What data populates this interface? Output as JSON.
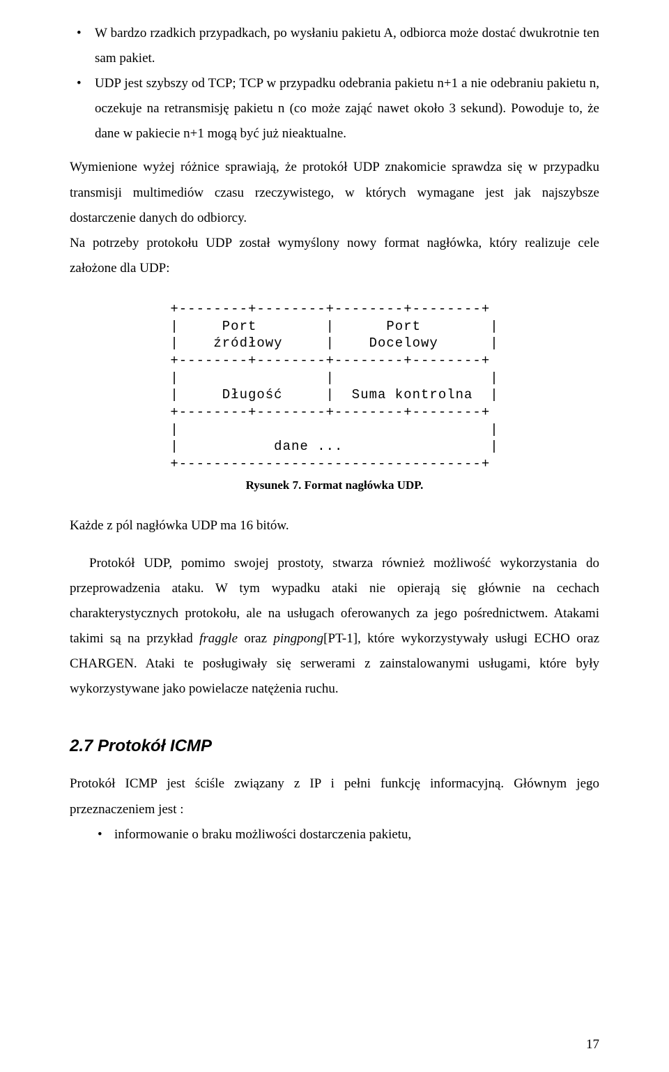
{
  "bullets_top": [
    "W bardzo rzadkich przypadkach, po wysłaniu pakietu A, odbiorca może dostać dwukrotnie ten sam pakiet.",
    "UDP jest szybszy od TCP; TCP w przypadku odebrania pakietu n+1 a nie odebraniu pakietu n, oczekuje na retransmisję pakietu n (co może zająć nawet około 3 sekund). Powoduje to, że dane w pakiecie n+1 mogą być już nieaktualne."
  ],
  "para1": "Wymienione wyżej różnice sprawiają, że protokół UDP znakomicie sprawdza się w przypadku transmisji multimediów czasu rzeczywistego, w których wymagane jest jak najszybsze dostarczenie danych do odbiorcy.",
  "para2": "Na potrzeby protokołu UDP został wymyślony nowy format nagłówka, który realizuje cele założone dla UDP:",
  "figure": {
    "ascii": "+--------+--------+--------+--------+\n|     Port        |      Port        |\n|    źródłowy     |    Docelowy      |\n+--------+--------+--------+--------+\n|                 |                  |\n|     Długość     |  Suma kontrolna  |\n+--------+--------+--------+--------+\n|                                    |\n|           dane ...                 |\n+-----------------------------------+",
    "caption": "Rysunek 7. Format nagłówka UDP."
  },
  "para3": "Każde z pól nagłówka UDP ma 16 bitów.",
  "para4": "Protokół UDP, pomimo swojej prostoty, stwarza również możliwość wykorzystania do przeprowadzenia ataku. W tym wypadku ataki nie opierają się głównie na cechach charakterystycznych protokołu, ale na usługach oferowanych za jego pośrednictwem. Atakami takimi są na przykład fraggle oraz pingpong[PT-1], które wykorzystywały usługi ECHO oraz CHARGEN. Ataki te posługiwały się serwerami z zainstalowanymi usługami, które były wykorzystywane jako powielacze natężenia ruchu.",
  "section_heading": "2.7   Protokół ICMP",
  "para5": "Protokół ICMP jest ściśle związany z IP i pełni funkcję informacyjną. Głównym jego przeznaczeniem jest :",
  "bullets_bottom": [
    "informowanie o braku możliwości dostarczenia pakietu,"
  ],
  "page_number": "17",
  "colors": {
    "background": "#ffffff",
    "text": "#000000"
  },
  "fonts": {
    "body_family": "Times New Roman",
    "mono_family": "Courier New",
    "heading_family": "Arial",
    "body_size_pt": 14,
    "heading_size_pt": 18
  }
}
